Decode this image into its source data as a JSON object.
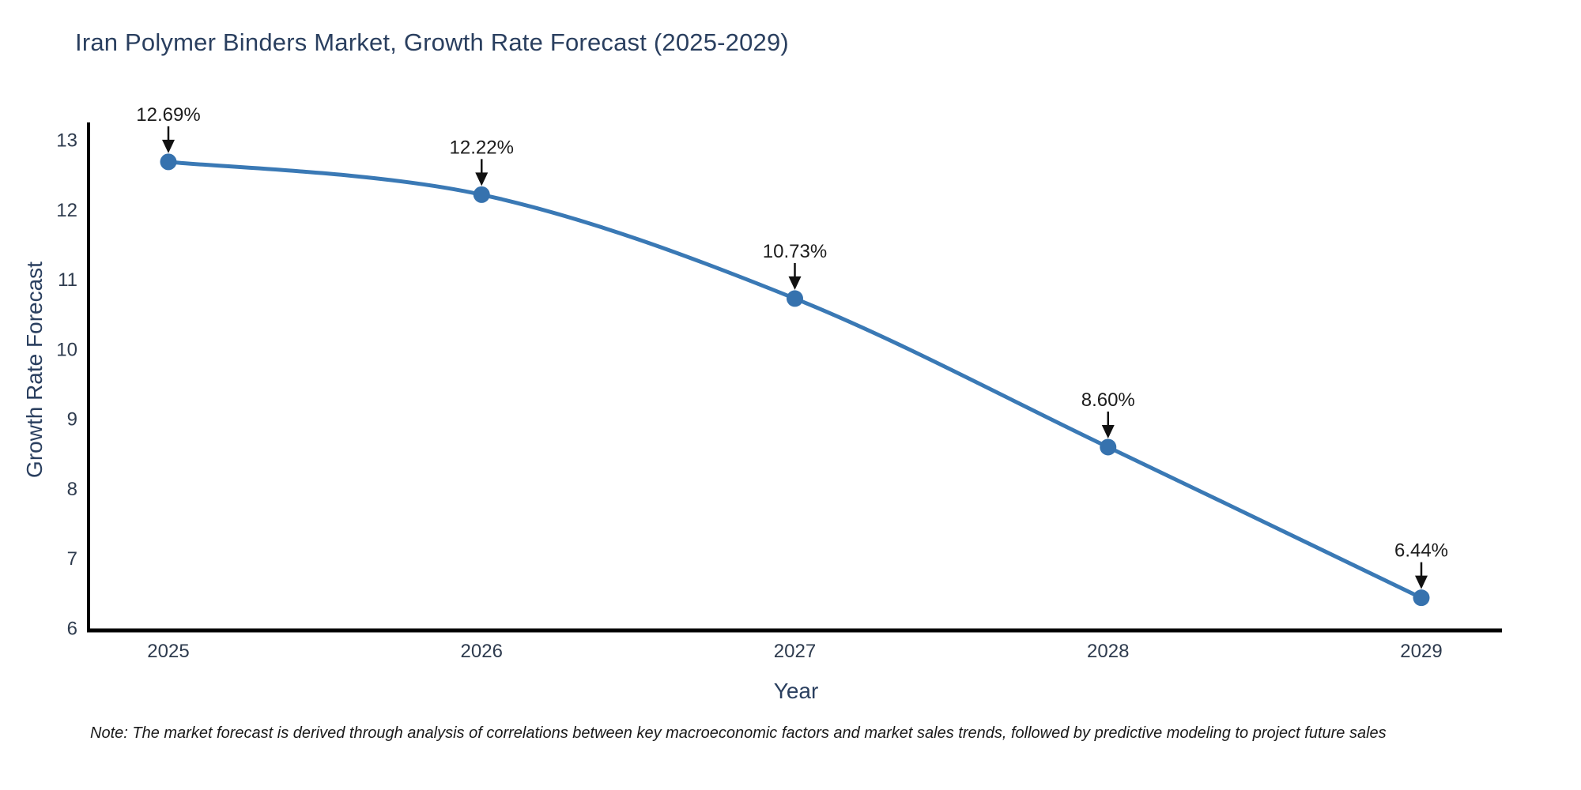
{
  "title": "Iran Polymer Binders Market, Growth Rate Forecast (2025-2029)",
  "note": "Note: The market forecast is derived through analysis of correlations between key macroeconomic factors and market sales trends, followed by predictive modeling to project future sales",
  "chart_data": {
    "type": "line",
    "title": "Iran Polymer Binders Market, Growth Rate Forecast (2025-2029)",
    "xlabel": "Year",
    "ylabel": "Growth Rate Forecast",
    "x": [
      2025,
      2026,
      2027,
      2028,
      2029
    ],
    "y": [
      12.69,
      12.22,
      10.73,
      8.6,
      6.44
    ],
    "point_labels": [
      "12.69%",
      "12.22%",
      "10.73%",
      "8.60%",
      "6.44%"
    ],
    "xticks": [
      "2025",
      "2026",
      "2027",
      "2028",
      "2029"
    ],
    "yticks": [
      6,
      7,
      8,
      9,
      10,
      11,
      12,
      13
    ],
    "ylim": [
      6,
      13
    ],
    "grid": false,
    "legend": null,
    "line_color": "#3a79b5",
    "marker_color": "#3672ae",
    "axis_color": "#000000",
    "annotation_arrow_color": "#111111",
    "annotation_text_color": "#1c1c1c",
    "tick_color": "#2e3b4e",
    "label_color": "#2a3f5f",
    "background_color": "#ffffff"
  }
}
